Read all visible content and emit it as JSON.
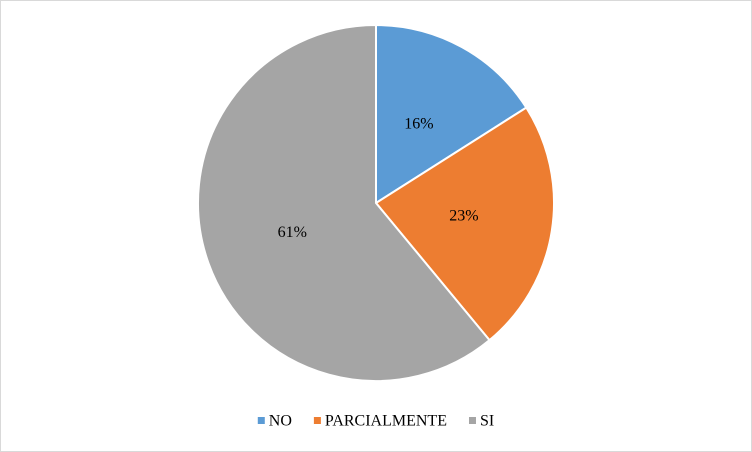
{
  "chart_data": {
    "type": "pie",
    "categories": [
      "NO",
      "PARCIALMENTE",
      "SI"
    ],
    "values": [
      16,
      23,
      61
    ],
    "value_labels": [
      "16%",
      "23%",
      "61%"
    ],
    "colors": [
      "#5b9bd5",
      "#ed7d31",
      "#a5a5a5"
    ],
    "legend": "bottom"
  }
}
